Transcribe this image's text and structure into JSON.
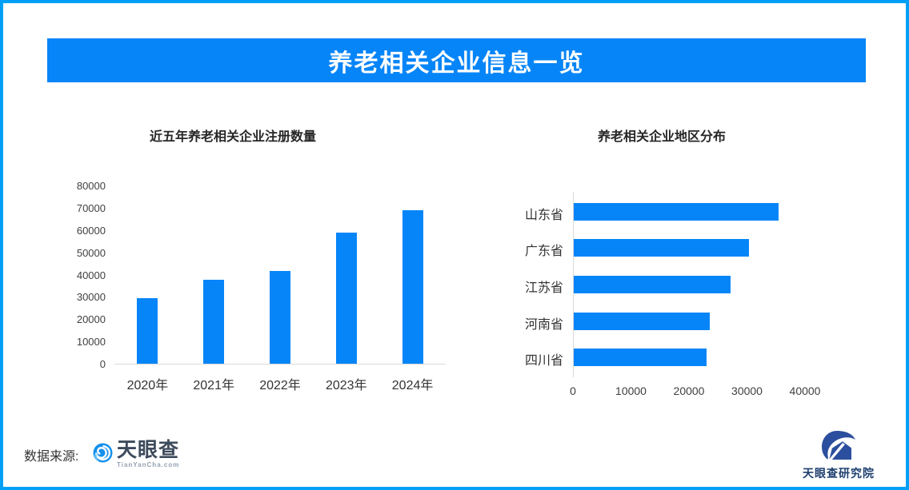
{
  "banner": {
    "title": "养老相关企业信息一览",
    "bg_color": "#0685f8",
    "text_color": "#ffffff"
  },
  "frame": {
    "border_color": "#00a0f6",
    "background": "#ffffff"
  },
  "chart_data": [
    {
      "type": "bar",
      "orientation": "vertical",
      "title": "近五年养老相关企业注册数量",
      "categories": [
        "2020年",
        "2021年",
        "2022年",
        "2023年",
        "2024年"
      ],
      "values": [
        29500,
        37500,
        41500,
        58800,
        68900
      ],
      "ylim": [
        0,
        80000
      ],
      "yticks": [
        0,
        10000,
        20000,
        30000,
        40000,
        50000,
        60000,
        70000,
        80000
      ],
      "bar_color": "#0685f8",
      "grid": false,
      "legend": "none",
      "xlabel": "",
      "ylabel": ""
    },
    {
      "type": "bar",
      "orientation": "horizontal",
      "title": "养老相关企业地区分布",
      "categories": [
        "山东省",
        "广东省",
        "江苏省",
        "河南省",
        "四川省"
      ],
      "values": [
        35300,
        30200,
        27100,
        23500,
        22900
      ],
      "xlim": [
        0,
        40000
      ],
      "xticks": [
        0,
        10000,
        20000,
        30000,
        40000
      ],
      "bar_color": "#0685f8",
      "grid": false,
      "legend": "none",
      "xlabel": "",
      "ylabel": ""
    }
  ],
  "footer": {
    "source_label": "数据来源:",
    "tianyancha_name": "天眼查",
    "tianyancha_sub": "TianYanCha.com",
    "research_name": "天眼查研究院"
  }
}
